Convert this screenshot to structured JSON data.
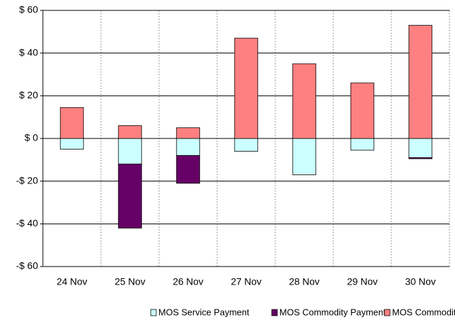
{
  "chart_data": {
    "type": "stacked_bar",
    "categories": [
      "24 Nov",
      "25 Nov",
      "26 Nov",
      "27 Nov",
      "28 Nov",
      "29 Nov",
      "30 Nov"
    ],
    "series": [
      {
        "name": "MOS Service Payment",
        "color": "#ccffff",
        "values": [
          -5,
          -12,
          -8,
          -6,
          -17,
          -5.5,
          -9
        ]
      },
      {
        "name": "MOS Commodity Payment",
        "color": "#660066",
        "values": [
          null,
          -30,
          -13,
          null,
          null,
          null,
          -0.5
        ]
      },
      {
        "name": "MOS Commodity charge",
        "color": "#ff8080",
        "values": [
          14.5,
          6,
          5,
          47,
          35,
          26,
          53
        ]
      }
    ],
    "ylim": [
      -60,
      60
    ],
    "yticks": [
      {
        "value": -60,
        "label": "-$ 60"
      },
      {
        "value": -40,
        "label": "-$ 40"
      },
      {
        "value": -20,
        "label": "-$ 20"
      },
      {
        "value": 0,
        "label": "$ 0"
      },
      {
        "value": 20,
        "label": "$ 20"
      },
      {
        "value": 40,
        "label": "$ 40"
      },
      {
        "value": 60,
        "label": "$ 60"
      }
    ],
    "grid": true,
    "legend": "bottom"
  }
}
